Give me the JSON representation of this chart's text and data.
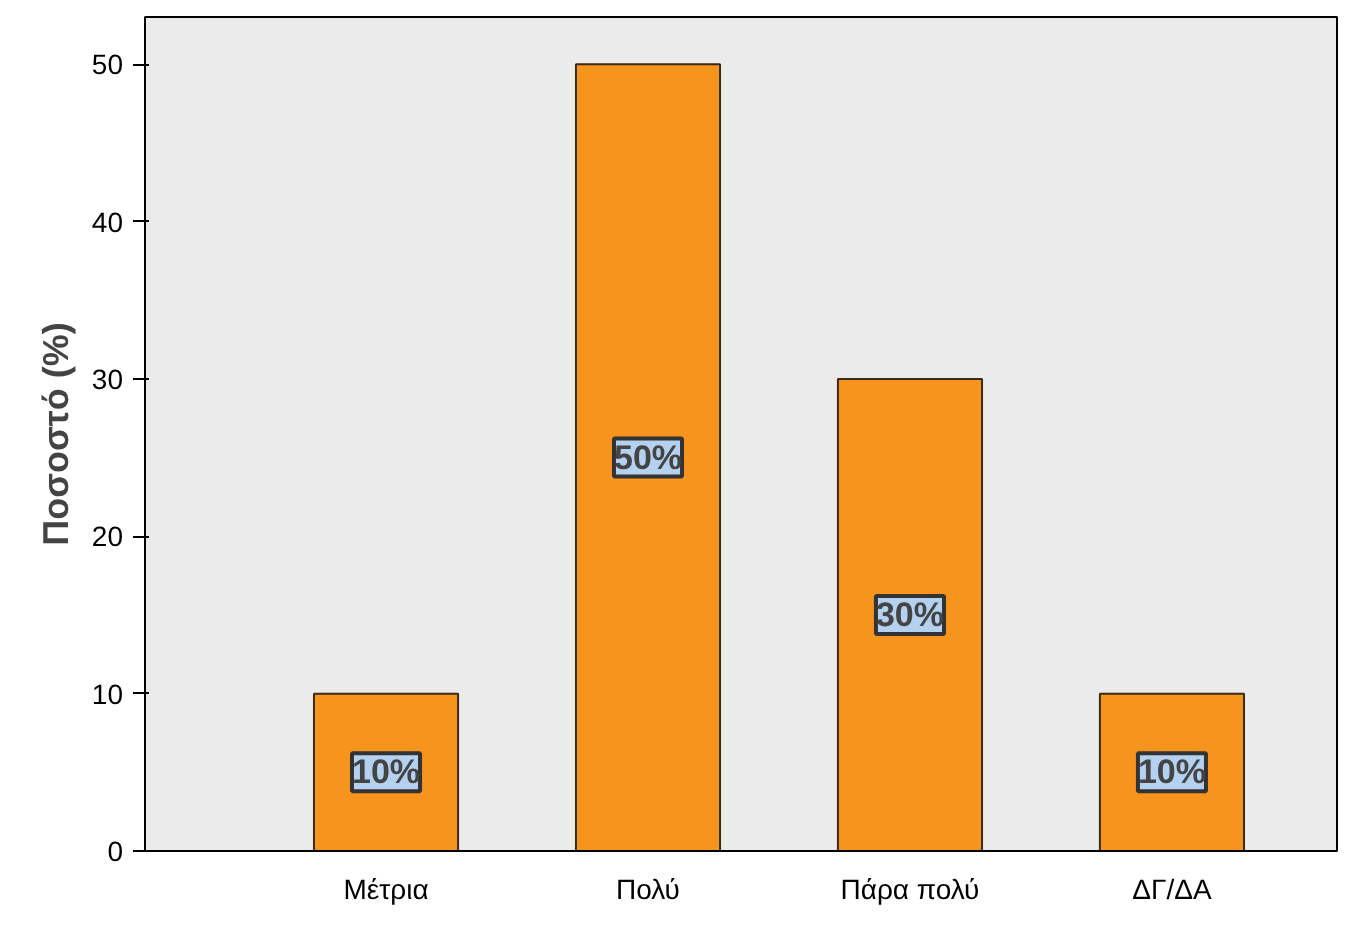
{
  "chart_data": {
    "type": "bar",
    "ylabel": "Ποσοστό (%)",
    "categories": [
      "Μέτρια",
      "Πολύ",
      "Πάρα πολύ",
      "ΔΓ/ΔΑ"
    ],
    "values": [
      10,
      50,
      30,
      10
    ],
    "value_labels": [
      "10%",
      "50%",
      "30%",
      "10%"
    ],
    "color": "#f7941d",
    "ylim": [
      0,
      53
    ],
    "yticks": [
      0,
      10,
      20,
      30,
      40,
      50
    ],
    "grid": false
  }
}
